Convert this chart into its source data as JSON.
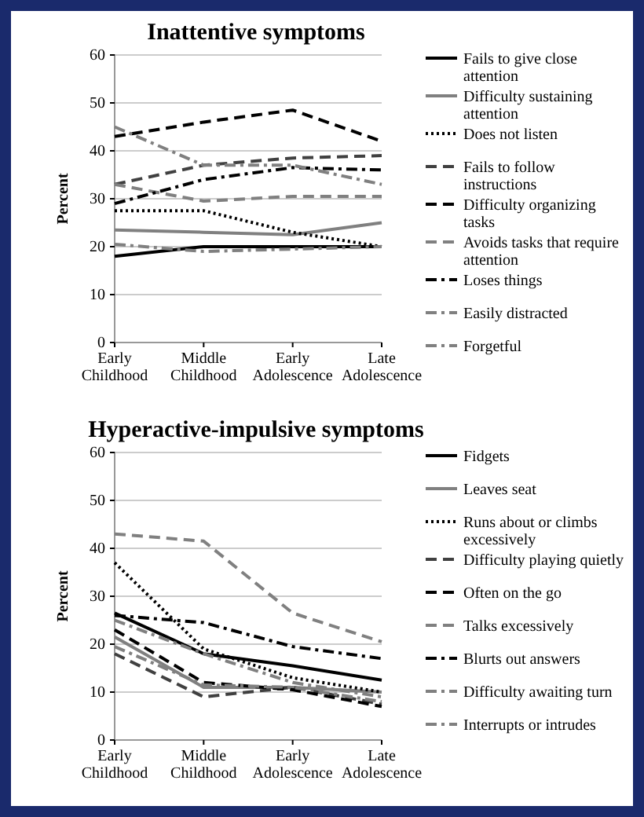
{
  "chart_data": [
    {
      "type": "line",
      "title": "Inattentive symptoms",
      "ylabel": "Percent",
      "categories": [
        "Early Childhood",
        "Middle Childhood",
        "Early Adolescence",
        "Late Adolescence"
      ],
      "ylim": [
        0,
        60
      ],
      "yticks": [
        0,
        10,
        20,
        30,
        40,
        50,
        60
      ],
      "grid": "y",
      "legend": "right",
      "marker": "none",
      "series": [
        {
          "name": "Fails to give close attention",
          "color": "#000000",
          "line_style": "solid",
          "values": [
            18,
            20,
            20,
            20
          ]
        },
        {
          "name": "Difficulty sustaining attention",
          "color": "#808080",
          "line_style": "solid",
          "values": [
            23.5,
            23,
            22.5,
            25
          ]
        },
        {
          "name": "Does not listen",
          "color": "#000000",
          "line_style": "dotted",
          "values": [
            27.5,
            27.5,
            23,
            20
          ]
        },
        {
          "name": "Fails to follow instructions",
          "color": "#404040",
          "line_style": "dashed",
          "values": [
            33,
            37,
            38.5,
            39
          ]
        },
        {
          "name": "Difficulty organizing tasks",
          "color": "#000000",
          "line_style": "dashed",
          "values": [
            43,
            46,
            48.5,
            42
          ]
        },
        {
          "name": "Avoids tasks that require attention",
          "color": "#808080",
          "line_style": "dashed",
          "values": [
            33,
            29.5,
            30.5,
            30.5
          ]
        },
        {
          "name": "Loses things",
          "color": "#000000",
          "line_style": "dashdot",
          "values": [
            29,
            34,
            36.5,
            36
          ]
        },
        {
          "name": "Easily distracted",
          "color": "#808080",
          "line_style": "dashdot",
          "values": [
            45,
            37,
            37,
            33
          ]
        },
        {
          "name": "Forgetful",
          "color": "#808080",
          "line_style": "dashdot",
          "values": [
            20.5,
            19,
            19.5,
            20
          ]
        }
      ]
    },
    {
      "type": "line",
      "title": "Hyperactive-impulsive symptoms",
      "ylabel": "Percent",
      "categories": [
        "Early Childhood",
        "Middle Childhood",
        "Early Adolescence",
        "Late Adolescence"
      ],
      "ylim": [
        0,
        60
      ],
      "yticks": [
        0,
        10,
        20,
        30,
        40,
        50,
        60
      ],
      "grid": "y",
      "legend": "right",
      "marker": "none",
      "series": [
        {
          "name": "Fidgets",
          "color": "#000000",
          "line_style": "solid",
          "values": [
            26.5,
            18,
            15.5,
            12.5
          ]
        },
        {
          "name": "Leaves seat",
          "color": "#808080",
          "line_style": "solid",
          "values": [
            21.5,
            11,
            11,
            10
          ]
        },
        {
          "name": "Runs about or climbs excessively",
          "color": "#000000",
          "line_style": "dotted",
          "values": [
            37,
            19,
            13,
            10
          ]
        },
        {
          "name": "Difficulty playing quietly",
          "color": "#404040",
          "line_style": "dashed",
          "values": [
            18,
            9,
            11,
            7.5
          ]
        },
        {
          "name": "Often on the go",
          "color": "#000000",
          "line_style": "dashed",
          "values": [
            23,
            12,
            10.5,
            7
          ]
        },
        {
          "name": "Talks excessively",
          "color": "#808080",
          "line_style": "dashed",
          "values": [
            43,
            41.5,
            26.5,
            20.5
          ]
        },
        {
          "name": "Blurts out answers",
          "color": "#000000",
          "line_style": "dashdot",
          "values": [
            26,
            24.5,
            19.5,
            17
          ]
        },
        {
          "name": "Difficulty awaiting turn",
          "color": "#808080",
          "line_style": "dashdot",
          "values": [
            25,
            18,
            12,
            9
          ]
        },
        {
          "name": "Interrupts or intrudes",
          "color": "#808080",
          "line_style": "dashdot",
          "values": [
            19.5,
            11.5,
            11,
            8
          ]
        }
      ]
    }
  ]
}
